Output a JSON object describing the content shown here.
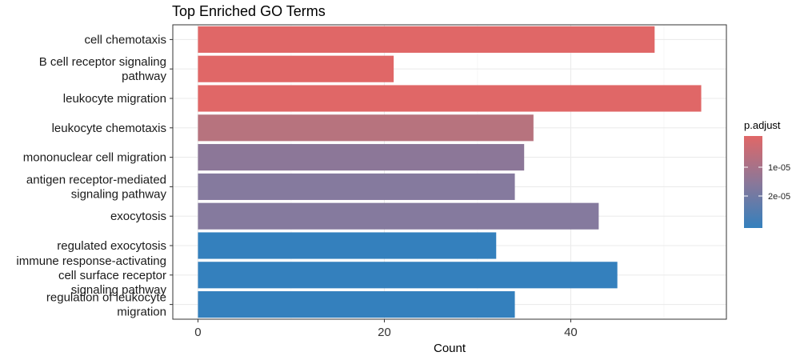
{
  "chart_data": {
    "type": "bar",
    "orientation": "horizontal",
    "title": "Top Enriched GO Terms",
    "xlabel": "Count",
    "ylabel": "",
    "xlim": [
      -2.7,
      56.7
    ],
    "xticks": [
      0,
      20,
      40
    ],
    "grid": true,
    "categories": [
      [
        "cell chemotaxis"
      ],
      [
        "B cell receptor signaling",
        "pathway"
      ],
      [
        "leukocyte migration"
      ],
      [
        "leukocyte chemotaxis"
      ],
      [
        "mononuclear cell migration"
      ],
      [
        "antigen receptor-mediated",
        "signaling pathway"
      ],
      [
        "exocytosis"
      ],
      [
        "regulated exocytosis"
      ],
      [
        "immune response-activating",
        "cell surface receptor",
        "signaling pathway"
      ],
      [
        "regulation of leukocyte",
        "migration"
      ]
    ],
    "values": [
      49,
      21,
      54,
      36,
      35,
      34,
      43,
      32,
      45,
      34
    ],
    "bar_colors": [
      "#E06767",
      "#E06767",
      "#E06767",
      "#B7737E",
      "#8C7798",
      "#857A9E",
      "#857A9E",
      "#3480BD",
      "#3480BD",
      "#3480BD"
    ],
    "legend": {
      "title": "p.adjust",
      "position": "right",
      "ticks": [
        "1e-05",
        "2e-05"
      ],
      "gradient": [
        "#E06767",
        "#8C7798",
        "#3480BD"
      ]
    }
  }
}
